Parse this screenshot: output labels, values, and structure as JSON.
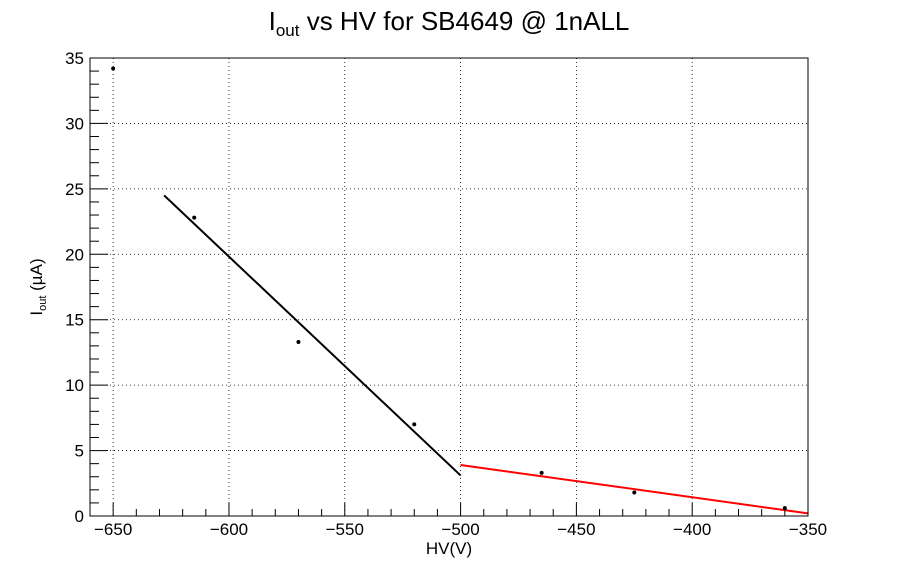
{
  "chart_data": {
    "type": "scatter",
    "title": {
      "main": "I",
      "sub": "out",
      "rest": " vs HV for SB4649 @ 1nALL"
    },
    "xlabel": "HV(V)",
    "ylabel": {
      "main": "I",
      "sub": "out",
      "rest": " (µA)"
    },
    "xlim": [
      -660,
      -350
    ],
    "ylim": [
      0,
      35
    ],
    "x_ticks": [
      -650,
      -600,
      -550,
      -500,
      -450,
      -400,
      -350
    ],
    "x_tick_labels": [
      "−650",
      "−600",
      "−550",
      "−500",
      "−450",
      "−400",
      "−350"
    ],
    "y_ticks": [
      0,
      5,
      10,
      15,
      20,
      25,
      30,
      35
    ],
    "y_tick_labels": [
      "0",
      "5",
      "10",
      "15",
      "20",
      "25",
      "30",
      "35"
    ],
    "grid": true,
    "points": [
      {
        "x": -650,
        "y": 34.2
      },
      {
        "x": -615,
        "y": 22.8
      },
      {
        "x": -570,
        "y": 13.3
      },
      {
        "x": -520,
        "y": 7.0
      },
      {
        "x": -465,
        "y": 3.3
      },
      {
        "x": -425,
        "y": 1.8
      },
      {
        "x": -360,
        "y": 0.6
      }
    ],
    "fits": [
      {
        "color": "#000000",
        "x": [
          -628,
          -500
        ],
        "y": [
          24.5,
          3.1
        ]
      },
      {
        "color": "#ff0000",
        "x": [
          -500,
          -350
        ],
        "y": [
          3.9,
          0.2
        ]
      }
    ]
  }
}
